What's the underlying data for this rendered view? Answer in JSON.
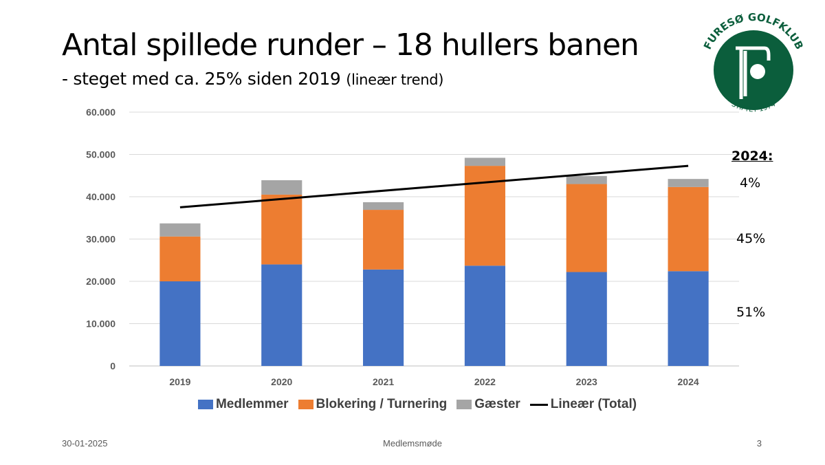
{
  "slide": {
    "title": "Antal spillede runder – 18 hullers banen",
    "subtitle": "- steget med ca. 25% siden 2019",
    "subtitle_note": "(lineær trend)",
    "footer_date": "30-01-2025",
    "footer_title": "Medlemsmøde",
    "page_number": "3"
  },
  "logo": {
    "top_text": "FURESØ GOLFKLUB",
    "bottom_text": "STIFTET 1974",
    "color": "#0b5e3c"
  },
  "annotation": {
    "heading": "2024:",
    "share_gaester": "4%",
    "share_blokering": "45%",
    "share_medlemmer": "51%"
  },
  "chart_data": {
    "type": "bar",
    "stacked": true,
    "categories": [
      "2019",
      "2020",
      "2021",
      "2022",
      "2023",
      "2024"
    ],
    "series": [
      {
        "name": "Medlemmer",
        "color": "#4472c4",
        "values": [
          20000,
          24000,
          22800,
          23700,
          22200,
          22400
        ]
      },
      {
        "name": "Blokering / Turnering",
        "color": "#ed7d31",
        "values": [
          10600,
          16500,
          14100,
          23600,
          20800,
          19900
        ]
      },
      {
        "name": "Gæster",
        "color": "#a5a5a5",
        "values": [
          3100,
          3400,
          1800,
          1900,
          1900,
          1900
        ]
      }
    ],
    "trendline": {
      "name": "Lineær (Total)",
      "color": "#000000",
      "start": 37500,
      "end": 47300
    },
    "yticks": [
      "0",
      "10.000",
      "20.000",
      "30.000",
      "40.000",
      "50.000",
      "60.000"
    ],
    "ylim": [
      0,
      60000
    ],
    "grid": true,
    "legend_position": "bottom"
  }
}
